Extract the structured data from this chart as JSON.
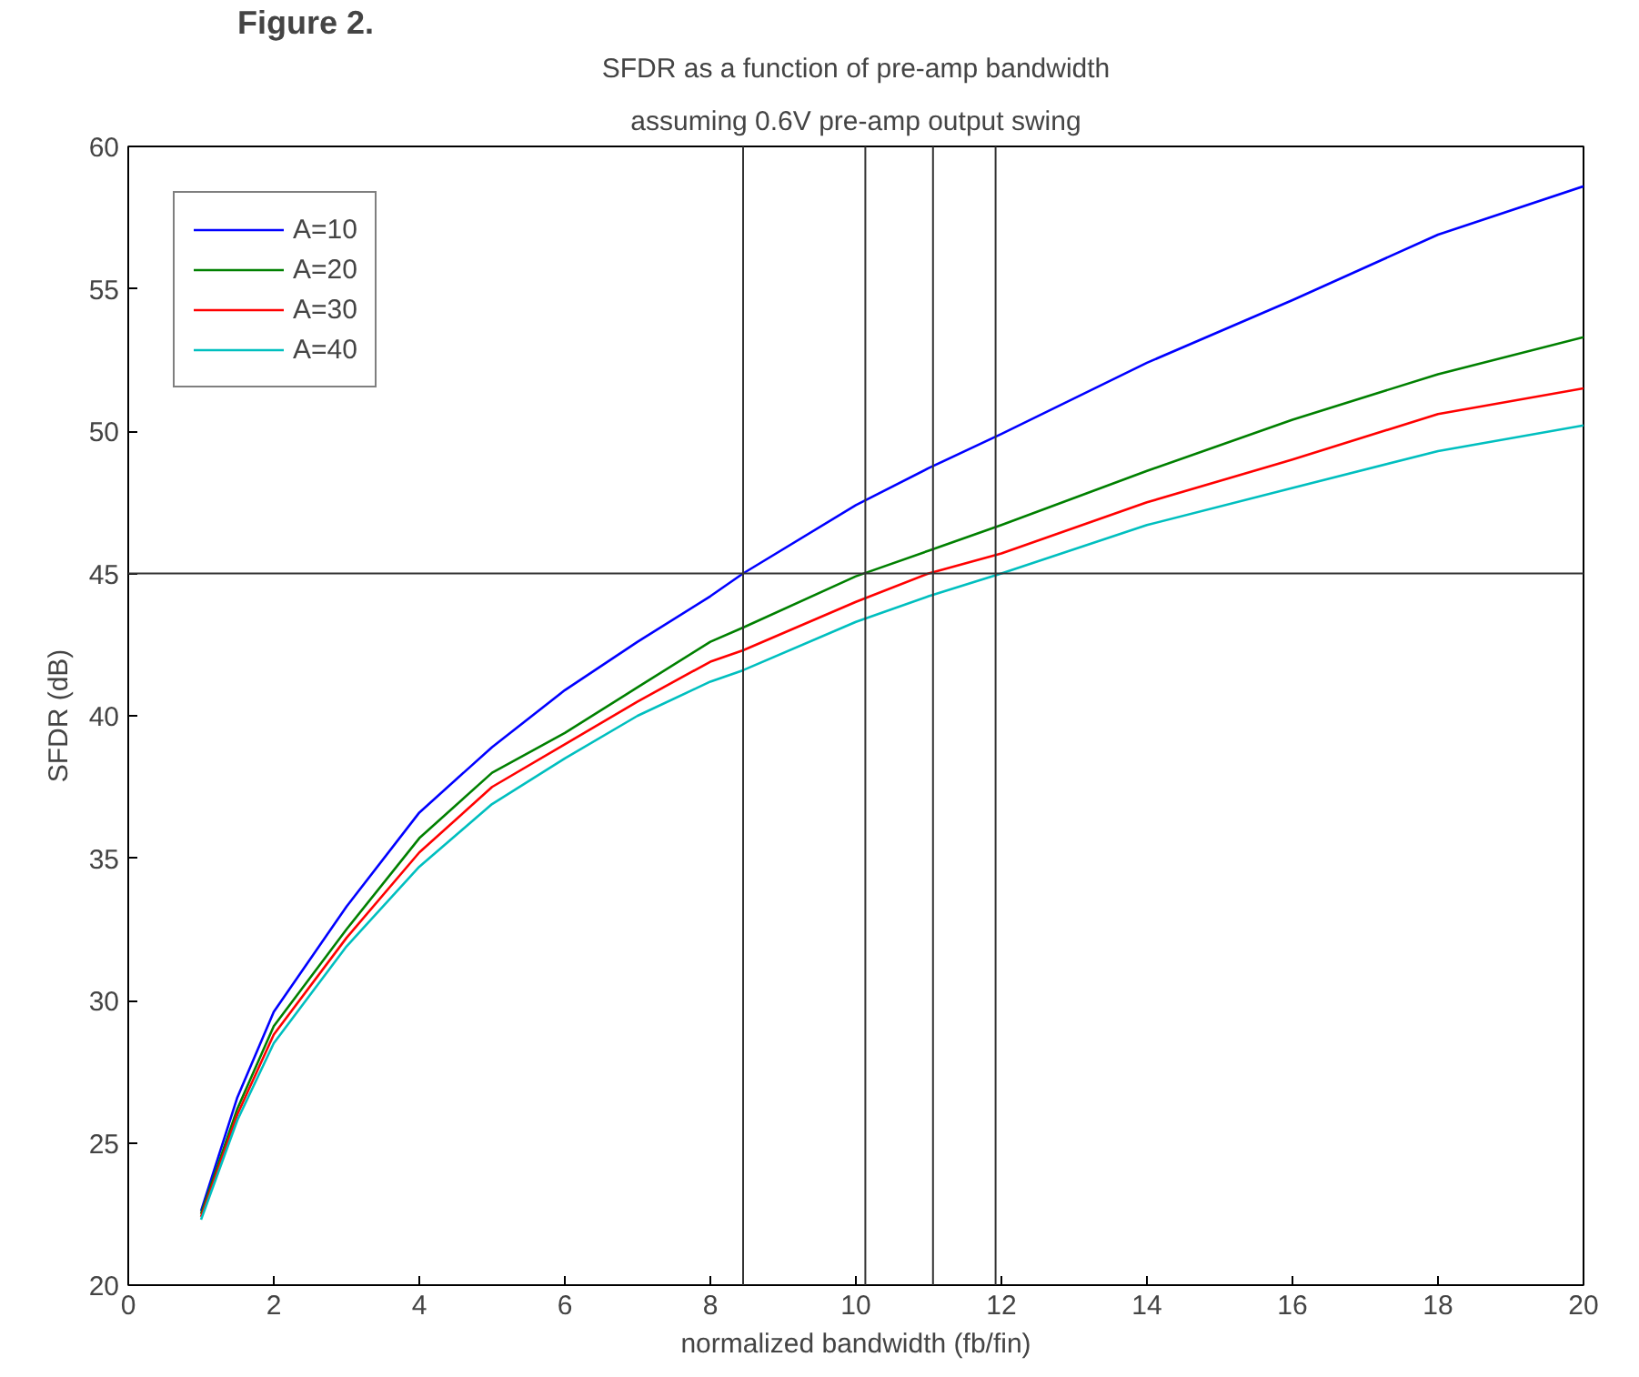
{
  "chart_data": {
    "type": "line",
    "title": "SFDR as a function of pre-amp bandwidth",
    "subtitle": "assuming 0.6V pre-amp output swing",
    "xlabel": "normalized bandwidth (fb/fin)",
    "ylabel": "SFDR (dB)",
    "annotations": [
      "Figure 2."
    ],
    "x": [
      1,
      1.5,
      2,
      3,
      4,
      5,
      6,
      7,
      8,
      8.45,
      10,
      11,
      12,
      14,
      16,
      18,
      20
    ],
    "series": [
      {
        "name": "A=10",
        "color": "#0000ff",
        "values": [
          22.6,
          26.6,
          29.6,
          33.3,
          36.6,
          38.9,
          40.9,
          42.6,
          44.2,
          45.0,
          47.4,
          48.7,
          49.9,
          52.4,
          54.6,
          56.9,
          58.6
        ]
      },
      {
        "name": "A=20",
        "color": "#008000",
        "values": [
          22.5,
          26.2,
          29.1,
          32.5,
          35.7,
          38.0,
          39.4,
          41.0,
          42.6,
          43.1,
          44.9,
          45.8,
          46.7,
          48.6,
          50.4,
          52.0,
          53.3
        ]
      },
      {
        "name": "A=30",
        "color": "#ff0000",
        "values": [
          22.4,
          26.0,
          28.8,
          32.2,
          35.2,
          37.5,
          39.0,
          40.5,
          41.9,
          42.3,
          44.0,
          45.0,
          45.7,
          47.5,
          49.0,
          50.6,
          51.5
        ]
      },
      {
        "name": "A=40",
        "color": "#00bfbf",
        "values": [
          22.3,
          25.8,
          28.5,
          31.9,
          34.7,
          36.9,
          38.5,
          40.0,
          41.2,
          41.6,
          43.3,
          44.2,
          45.0,
          46.7,
          48.0,
          49.3,
          50.2
        ]
      }
    ],
    "ref_lines": [
      {
        "axis": "x",
        "value": 8.45,
        "color": "#333333"
      },
      {
        "axis": "x",
        "value": 10.13,
        "color": "#333333"
      },
      {
        "axis": "x",
        "value": 11.06,
        "color": "#333333"
      },
      {
        "axis": "x",
        "value": 11.92,
        "color": "#333333"
      },
      {
        "axis": "y",
        "value": 45,
        "color": "#333333"
      }
    ],
    "xlim": [
      0,
      20
    ],
    "ylim": [
      20,
      60
    ],
    "xticks": [
      0,
      2,
      4,
      6,
      8,
      10,
      12,
      14,
      16,
      18,
      20
    ],
    "yticks": [
      20,
      25,
      30,
      35,
      40,
      45,
      50,
      55,
      60
    ],
    "grid": false,
    "legend": "top left",
    "line_style": "solid",
    "marker": "none"
  }
}
